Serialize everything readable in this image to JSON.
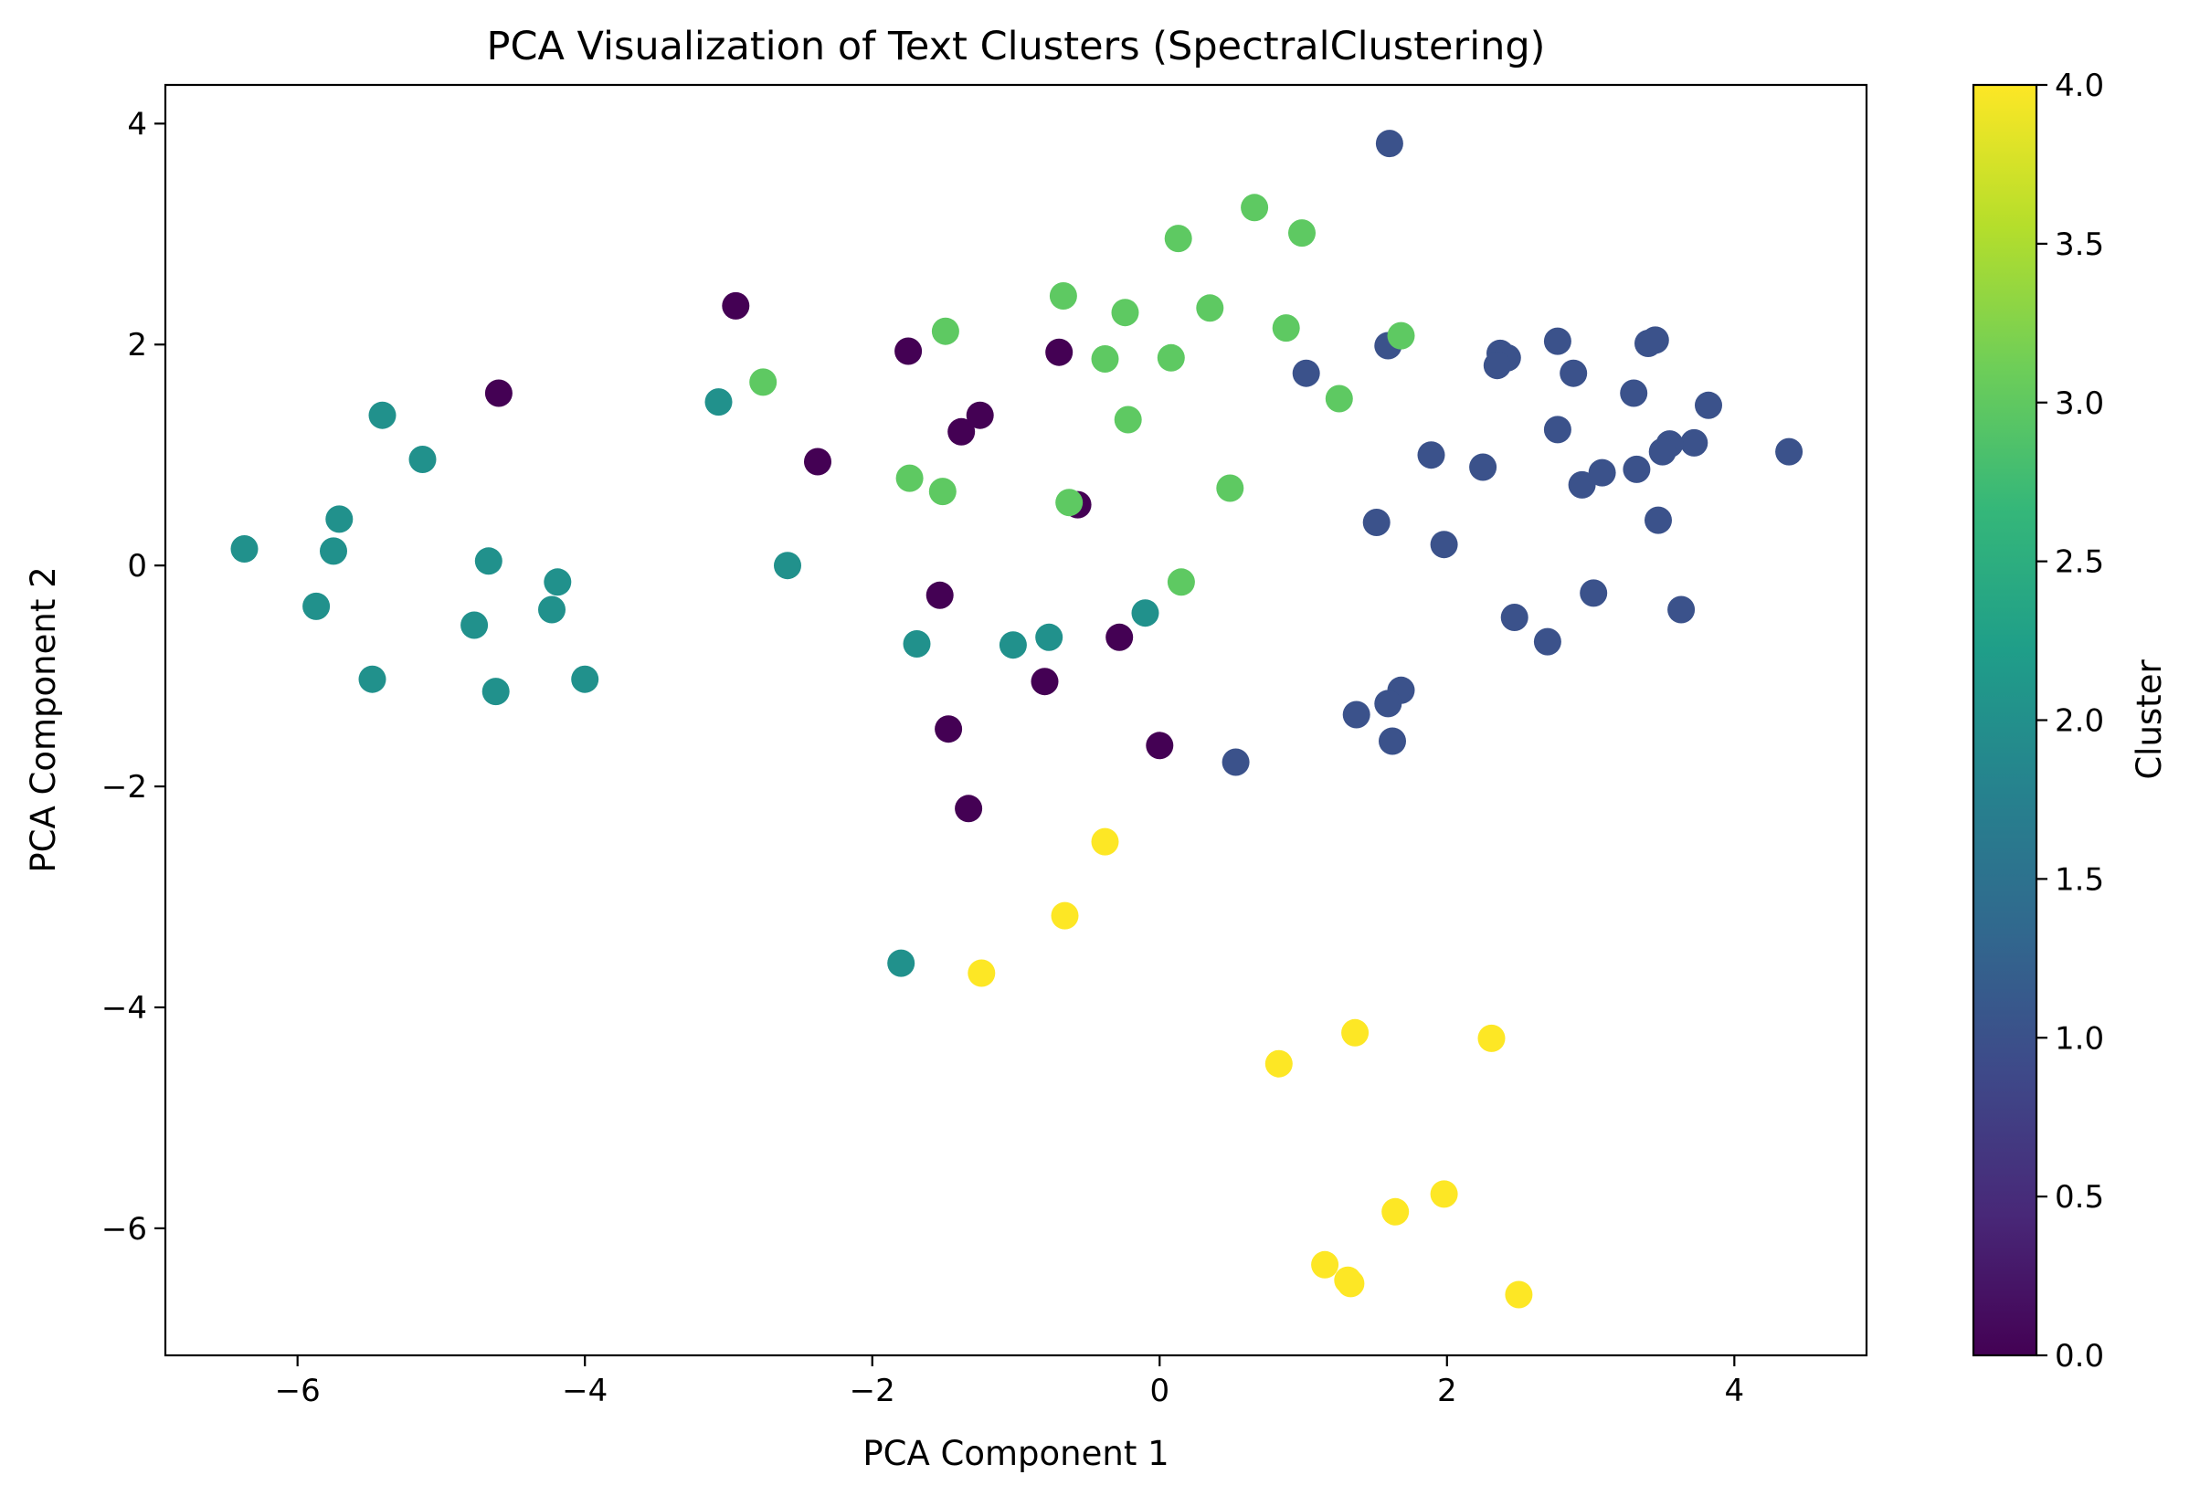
{
  "chart_data": {
    "type": "scatter",
    "title": "PCA Visualization of Text Clusters (SpectralClustering)",
    "xlabel": "PCA Component 1",
    "ylabel": "PCA Component 2",
    "xlim": [
      -6.92,
      4.92
    ],
    "ylim": [
      -7.15,
      4.35
    ],
    "xticks": [
      -6,
      -4,
      -2,
      0,
      2,
      4
    ],
    "xtick_labels": [
      "−6",
      "−4",
      "−2",
      "0",
      "2",
      "4"
    ],
    "yticks": [
      4,
      2,
      0,
      -2,
      -4,
      -6
    ],
    "ytick_labels": [
      "4",
      "2",
      "0",
      "−2",
      "−4",
      "−6"
    ],
    "grid": false,
    "legend": "none",
    "colormap": "viridis",
    "colormap_stops": [
      "#440154",
      "#482878",
      "#3e4989",
      "#31688e",
      "#26828e",
      "#1f9e89",
      "#35b779",
      "#6ece58",
      "#b5de2b",
      "#fde725"
    ],
    "colorbar": {
      "label": "Cluster",
      "range": [
        0.0,
        4.0
      ],
      "ticks": [
        0.0,
        0.5,
        1.0,
        1.5,
        2.0,
        2.5,
        3.0,
        3.5,
        4.0
      ],
      "tick_labels": [
        "0.0",
        "0.5",
        "1.0",
        "1.5",
        "2.0",
        "2.5",
        "3.0",
        "3.5",
        "4.0"
      ]
    },
    "series": [
      {
        "cluster": 0,
        "color": "#440154",
        "points": [
          [
            -2.95,
            2.35
          ],
          [
            -1.75,
            1.94
          ],
          [
            -0.7,
            1.93
          ],
          [
            -4.6,
            1.56
          ],
          [
            -1.25,
            1.36
          ],
          [
            -1.38,
            1.21
          ],
          [
            -2.38,
            0.94
          ],
          [
            -0.57,
            0.55
          ],
          [
            -1.53,
            -0.27
          ],
          [
            -0.28,
            -0.65
          ],
          [
            -0.8,
            -1.05
          ],
          [
            -1.47,
            -1.48
          ],
          [
            0.0,
            -1.63
          ],
          [
            -1.33,
            -2.2
          ]
        ]
      },
      {
        "cluster": 1,
        "color": "#3b528b",
        "points": [
          [
            1.6,
            3.82
          ],
          [
            2.37,
            1.92
          ],
          [
            2.42,
            1.88
          ],
          [
            2.35,
            1.81
          ],
          [
            2.77,
            2.03
          ],
          [
            3.4,
            2.01
          ],
          [
            3.45,
            2.04
          ],
          [
            1.02,
            1.74
          ],
          [
            1.59,
            1.99
          ],
          [
            2.88,
            1.74
          ],
          [
            3.3,
            1.56
          ],
          [
            3.82,
            1.45
          ],
          [
            2.77,
            1.23
          ],
          [
            3.72,
            1.11
          ],
          [
            3.55,
            1.1
          ],
          [
            3.5,
            1.03
          ],
          [
            4.38,
            1.03
          ],
          [
            1.89,
            1.0
          ],
          [
            2.25,
            0.89
          ],
          [
            3.08,
            0.84
          ],
          [
            3.32,
            0.87
          ],
          [
            2.94,
            0.73
          ],
          [
            1.51,
            0.39
          ],
          [
            3.47,
            0.41
          ],
          [
            1.98,
            0.19
          ],
          [
            3.02,
            -0.25
          ],
          [
            2.47,
            -0.47
          ],
          [
            3.63,
            -0.4
          ],
          [
            2.7,
            -0.69
          ],
          [
            1.68,
            -1.13
          ],
          [
            1.59,
            -1.25
          ],
          [
            1.37,
            -1.35
          ],
          [
            1.62,
            -1.59
          ],
          [
            0.53,
            -1.78
          ]
        ]
      },
      {
        "cluster": 2,
        "color": "#21918c",
        "points": [
          [
            -3.07,
            1.48
          ],
          [
            -5.41,
            1.36
          ],
          [
            -5.13,
            0.96
          ],
          [
            -5.71,
            0.42
          ],
          [
            -6.37,
            0.15
          ],
          [
            -5.75,
            0.13
          ],
          [
            -4.67,
            0.04
          ],
          [
            -2.59,
            0.0
          ],
          [
            -4.19,
            -0.15
          ],
          [
            -5.87,
            -0.37
          ],
          [
            -4.23,
            -0.4
          ],
          [
            -4.77,
            -0.54
          ],
          [
            -1.69,
            -0.71
          ],
          [
            -1.02,
            -0.72
          ],
          [
            -0.77,
            -0.65
          ],
          [
            -0.1,
            -0.43
          ],
          [
            -5.48,
            -1.03
          ],
          [
            -4.0,
            -1.03
          ],
          [
            -4.62,
            -1.14
          ],
          [
            -1.8,
            -3.6
          ]
        ]
      },
      {
        "cluster": 3,
        "color": "#5ec962",
        "points": [
          [
            0.66,
            3.24
          ],
          [
            0.99,
            3.01
          ],
          [
            0.13,
            2.96
          ],
          [
            -0.67,
            2.44
          ],
          [
            -0.24,
            2.29
          ],
          [
            0.35,
            2.33
          ],
          [
            -1.49,
            2.12
          ],
          [
            0.88,
            2.15
          ],
          [
            1.68,
            2.08
          ],
          [
            -0.38,
            1.87
          ],
          [
            0.08,
            1.88
          ],
          [
            -2.76,
            1.66
          ],
          [
            1.25,
            1.51
          ],
          [
            -0.22,
            1.32
          ],
          [
            -1.74,
            0.79
          ],
          [
            -1.51,
            0.67
          ],
          [
            0.49,
            0.7
          ],
          [
            -0.63,
            0.57
          ],
          [
            0.15,
            -0.15
          ]
        ]
      },
      {
        "cluster": 4,
        "color": "#fde725",
        "points": [
          [
            -0.38,
            -2.5
          ],
          [
            -0.66,
            -3.17
          ],
          [
            -1.24,
            -3.69
          ],
          [
            1.36,
            -4.23
          ],
          [
            2.31,
            -4.28
          ],
          [
            0.83,
            -4.51
          ],
          [
            1.98,
            -5.69
          ],
          [
            1.64,
            -5.85
          ],
          [
            1.15,
            -6.33
          ],
          [
            1.31,
            -6.47
          ],
          [
            1.33,
            -6.5
          ],
          [
            2.5,
            -6.6
          ]
        ]
      }
    ]
  }
}
